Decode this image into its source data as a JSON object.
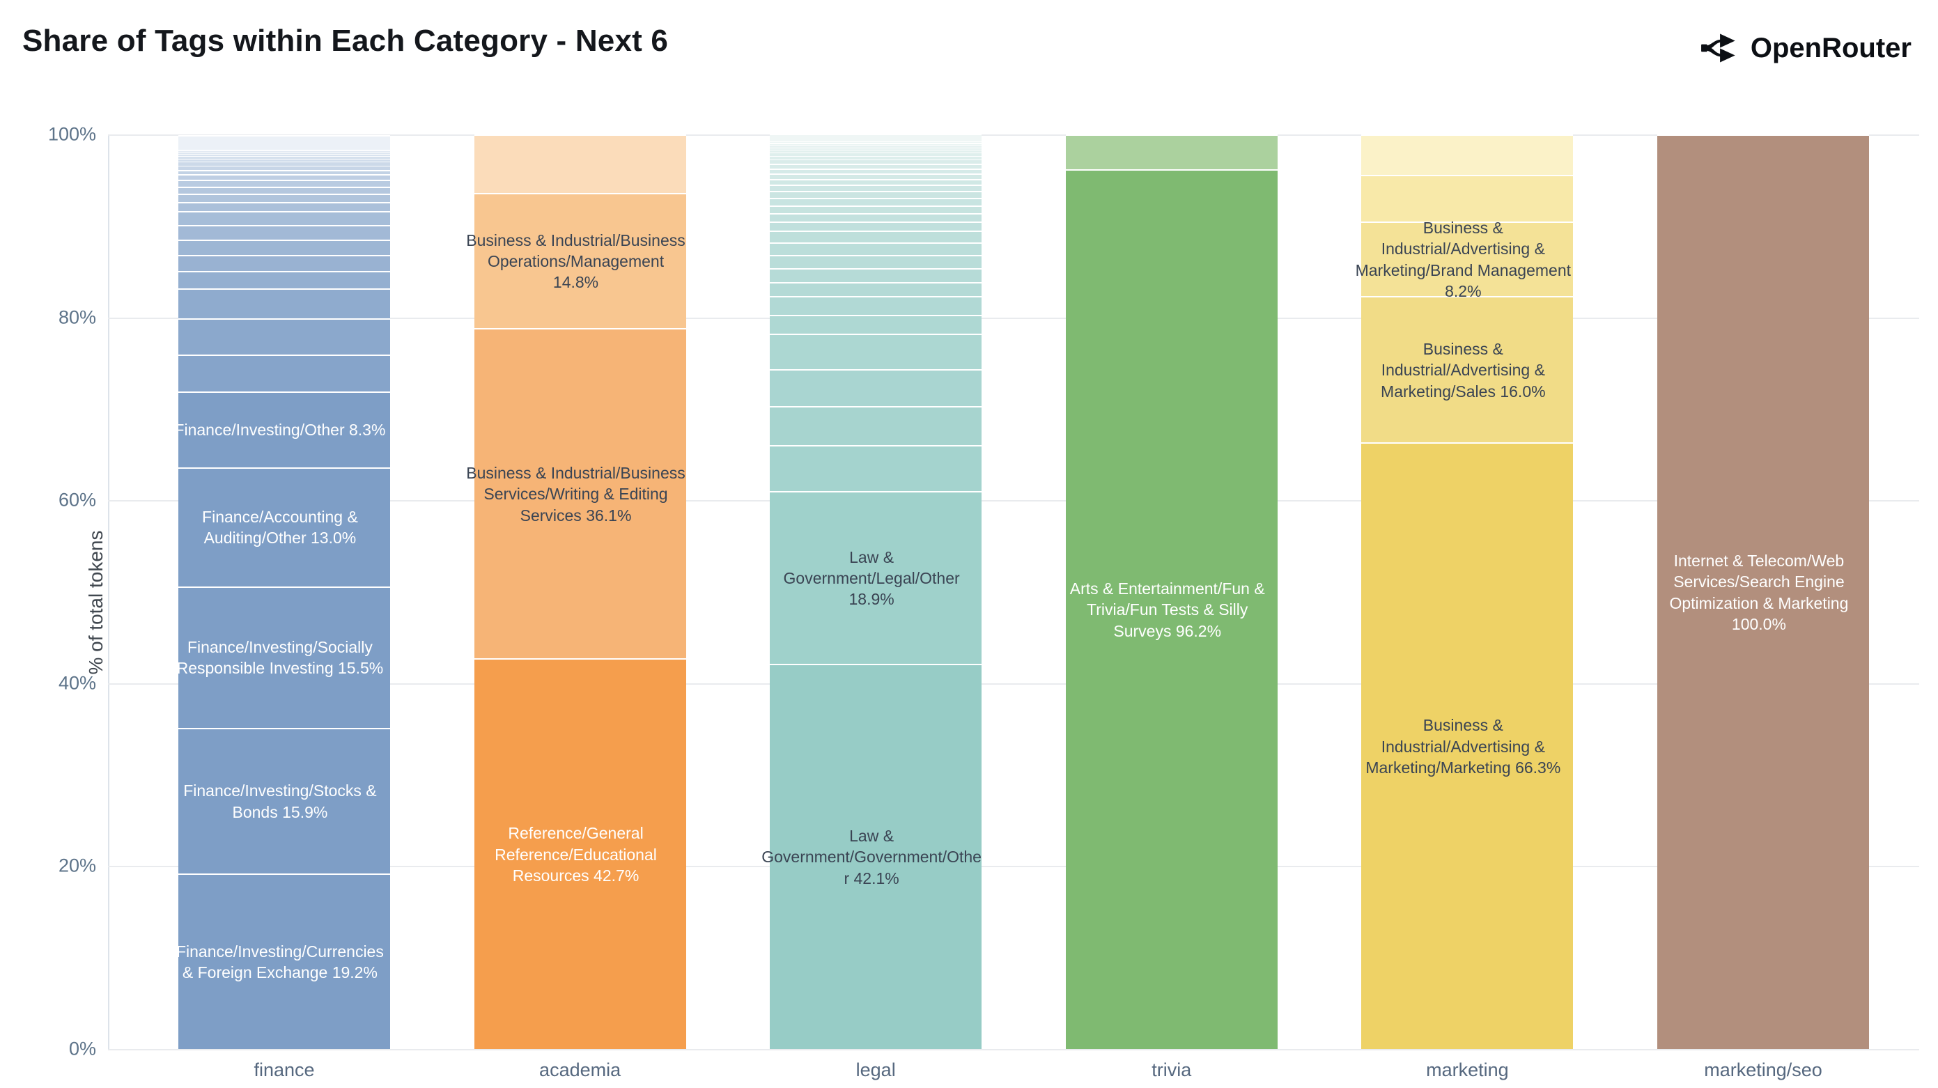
{
  "header": {
    "title": "Share of Tags within Each Category - Next 6",
    "brand": "OpenRouter"
  },
  "chart_data": {
    "type": "bar",
    "variant": "percent-stacked-vertical",
    "title": "Share of Tags within Each Category - Next 6",
    "xlabel": "",
    "ylabel": "% of total tokens",
    "ylim": [
      0,
      100
    ],
    "y_ticks": [
      "0%",
      "20%",
      "40%",
      "60%",
      "80%",
      "100%"
    ],
    "grid": true,
    "legend": "none",
    "categories": [
      "finance",
      "academia",
      "legal",
      "trivia",
      "marketing",
      "marketing/seo"
    ],
    "text_colors": {
      "light": "#ffffff",
      "dark": "#3a4453"
    },
    "bars": [
      {
        "category": "finance",
        "segments": [
          {
            "label": "Finance/Investing/Currencies & Foreign Exchange",
            "value": 19.2,
            "value_display": "19.2%",
            "color": "#7e9ec6",
            "text_color": "#ffffff"
          },
          {
            "label": "Finance/Investing/Stocks & Bonds",
            "value": 15.9,
            "value_display": "15.9%",
            "color": "#7e9ec6",
            "text_color": "#ffffff"
          },
          {
            "label": "Finance/Investing/Socially Responsible Investing",
            "value": 15.5,
            "value_display": "15.5%",
            "color": "#7e9ec6",
            "text_color": "#ffffff"
          },
          {
            "label": "Finance/Accounting & Auditing/Other",
            "value": 13.0,
            "value_display": "13.0%",
            "color": "#7e9ec6",
            "text_color": "#ffffff"
          },
          {
            "label": "Finance/Investing/Other",
            "value": 8.3,
            "value_display": "8.3%",
            "color": "#7e9ec6",
            "text_color": "#ffffff"
          }
        ],
        "unlabeled_segments": {
          "values_pct_estimated": [
            4.0,
            4.0,
            3.3,
            1.9,
            1.75,
            1.65,
            1.6,
            1.5,
            1.0,
            0.9,
            0.8,
            0.75,
            0.6,
            0.5,
            0.45,
            0.4,
            0.35,
            0.3,
            0.25,
            0.2,
            0.15,
            0.1,
            1.6
          ],
          "color_from": "#86a4ca",
          "color_to": "#ecf1f7"
        }
      },
      {
        "category": "academia",
        "segments": [
          {
            "label": "Reference/General Reference/Educational Resources",
            "value": 42.7,
            "value_display": "42.7%",
            "color": "#f59e4d",
            "text_color": "#ffffff"
          },
          {
            "label": "Business & Industrial/Business Services/Writing & Editing Services",
            "value": 36.1,
            "value_display": "36.1%",
            "color": "#f6b476",
            "text_color": "#3a4453"
          },
          {
            "label": "Business & Industrial/Business Operations/Management",
            "value": 14.8,
            "value_display": "14.8%",
            "color": "#f8c690",
            "text_color": "#3a4453"
          }
        ],
        "unlabeled_segments": {
          "values_pct_estimated": [
            6.4
          ],
          "color_from": "#fbdcba",
          "color_to": "#fbdcba"
        }
      },
      {
        "category": "legal",
        "segments": [
          {
            "label": "Law & Government/Government/Other",
            "value": 42.1,
            "value_display": "42.1%",
            "color": "#97ccc6",
            "text_color": "#3a4453"
          },
          {
            "label": "Law & Government/Legal/Other",
            "value": 18.9,
            "value_display": "18.9%",
            "color": "#9fd1cb",
            "text_color": "#3a4453"
          }
        ],
        "unlabeled_segments": {
          "values_pct_estimated": [
            5.0,
            4.3,
            4.0,
            3.9,
            2.1,
            2.0,
            1.55,
            1.5,
            1.45,
            1.4,
            1.3,
            1.0,
            0.9,
            0.85,
            0.8,
            0.75,
            0.7,
            0.65,
            0.6,
            0.55,
            0.5,
            0.45,
            0.4,
            0.35,
            0.3,
            0.28,
            0.25,
            0.22,
            0.2,
            0.8
          ],
          "color_from": "#a4d3ce",
          "color_to": "#eff6f5"
        }
      },
      {
        "category": "trivia",
        "segments": [
          {
            "label": "Arts & Entertainment/Fun & Trivia/Fun Tests & Silly Surveys",
            "value": 96.2,
            "value_display": "96.2%",
            "color": "#7fba71",
            "text_color": "#ffffff"
          }
        ],
        "unlabeled_segments": {
          "values_pct_estimated": [
            3.8
          ],
          "color_from": "#abd19e",
          "color_to": "#abd19e"
        }
      },
      {
        "category": "marketing",
        "segments": [
          {
            "label": "Business & Industrial/Advertising & Marketing/Marketing",
            "value": 66.3,
            "value_display": "66.3%",
            "color": "#eed266",
            "text_color": "#3a4453"
          },
          {
            "label": "Business & Industrial/Advertising & Marketing/Sales",
            "value": 16.0,
            "value_display": "16.0%",
            "color": "#f1dc87",
            "text_color": "#3a4453"
          },
          {
            "label": "Business & Industrial/Advertising & Marketing/Brand Management",
            "value": 8.2,
            "value_display": "8.2%",
            "color": "#f4e297",
            "text_color": "#3a4453"
          }
        ],
        "unlabeled_segments": {
          "values_pct_estimated": [
            5.1,
            4.4
          ],
          "color_from": "#f8e9a9",
          "color_to": "#fbf2c8"
        }
      },
      {
        "category": "marketing/seo",
        "segments": [
          {
            "label": "Internet & Telecom/Web Services/Search Engine Optimization & Marketing",
            "value": 100.0,
            "value_display": "100.0%",
            "color": "#b28f7d",
            "text_color": "#ffffff"
          }
        ],
        "unlabeled_segments": {
          "values_pct_estimated": [],
          "color_from": "#b28f7d",
          "color_to": "#b28f7d"
        }
      }
    ]
  }
}
